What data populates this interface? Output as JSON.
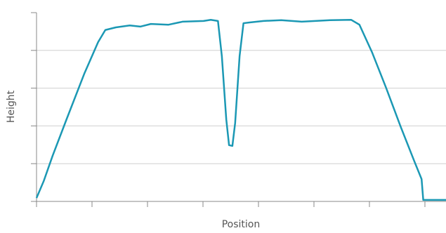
{
  "chart_data": {
    "type": "line",
    "xlabel": "Position",
    "ylabel": "Height",
    "x": [
      0,
      0.13,
      0.29,
      0.54,
      0.86,
      1.11,
      1.24,
      1.43,
      1.68,
      1.87,
      2.06,
      2.38,
      2.63,
      3.01,
      3.14,
      3.27,
      3.34,
      3.42,
      3.47,
      3.53,
      3.58,
      3.66,
      3.73,
      3.84,
      4.09,
      4.41,
      4.78,
      5.29,
      5.67,
      5.82,
      6.05,
      6.3,
      6.56,
      6.81,
      6.94,
      6.97,
      7.38
    ],
    "series": [
      {
        "color": "#1b98b4",
        "values": [
          0.09,
          0.54,
          1.21,
          2.17,
          3.38,
          4.22,
          4.54,
          4.61,
          4.66,
          4.63,
          4.7,
          4.68,
          4.76,
          4.78,
          4.81,
          4.78,
          3.85,
          2.17,
          1.49,
          1.47,
          2.08,
          3.85,
          4.72,
          4.74,
          4.78,
          4.8,
          4.76,
          4.8,
          4.81,
          4.68,
          3.94,
          3.01,
          1.99,
          1.06,
          0.59,
          0.04,
          0.04
        ]
      }
    ],
    "xlim": [
      0,
      7.38
    ],
    "ylim": [
      0,
      5
    ],
    "xticks": [
      0,
      1,
      2,
      3,
      4,
      5,
      6,
      7
    ],
    "yticks": [
      0,
      1,
      2,
      3,
      4,
      5
    ],
    "grid": true,
    "tick_labels": false
  }
}
